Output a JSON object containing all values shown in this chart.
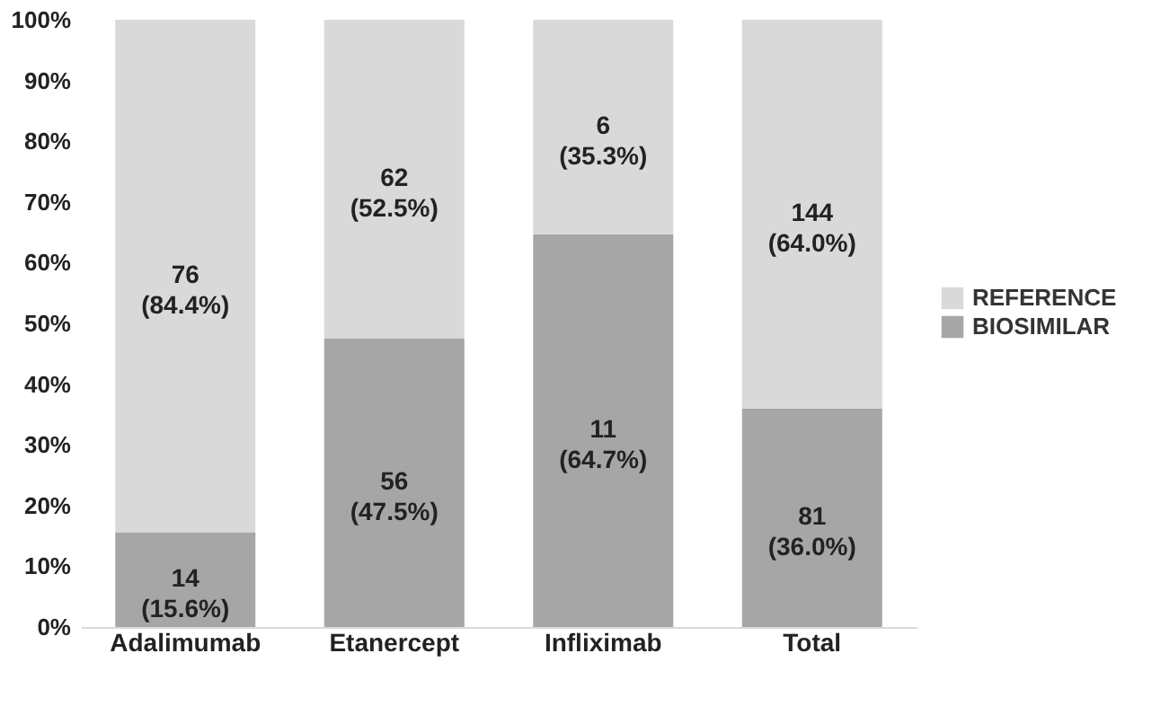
{
  "chart_data": {
    "type": "bar",
    "stacked": true,
    "categories": [
      "Adalimumab",
      "Etanercept",
      "Infliximab",
      "Total"
    ],
    "series": [
      {
        "name": "BIOSIMILAR",
        "color": "#a6a6a6",
        "values": [
          15.6,
          47.5,
          64.7,
          36.0
        ],
        "value_labels": [
          "14\n(15.6%)",
          "56\n(47.5%)",
          "11\n(64.7%)",
          "81\n(36.0%)"
        ]
      },
      {
        "name": "REFERENCE",
        "color": "#d9d9d9",
        "values": [
          84.4,
          52.5,
          35.3,
          64.0
        ],
        "value_labels": [
          "76\n(84.4%)",
          "62\n(52.5%)",
          "6\n(35.3%)",
          "144\n(64.0%)"
        ]
      }
    ],
    "ylim": [
      0,
      100
    ],
    "yticks": [
      {
        "value": 0,
        "label": "0%"
      },
      {
        "value": 10,
        "label": "10%"
      },
      {
        "value": 20,
        "label": "20%"
      },
      {
        "value": 30,
        "label": "30%"
      },
      {
        "value": 40,
        "label": "40%"
      },
      {
        "value": 50,
        "label": "50%"
      },
      {
        "value": 60,
        "label": "60%"
      },
      {
        "value": 70,
        "label": "70%"
      },
      {
        "value": 80,
        "label": "80%"
      },
      {
        "value": 90,
        "label": "90%"
      },
      {
        "value": 100,
        "label": "100%"
      }
    ],
    "grid": false,
    "legend": "right"
  }
}
